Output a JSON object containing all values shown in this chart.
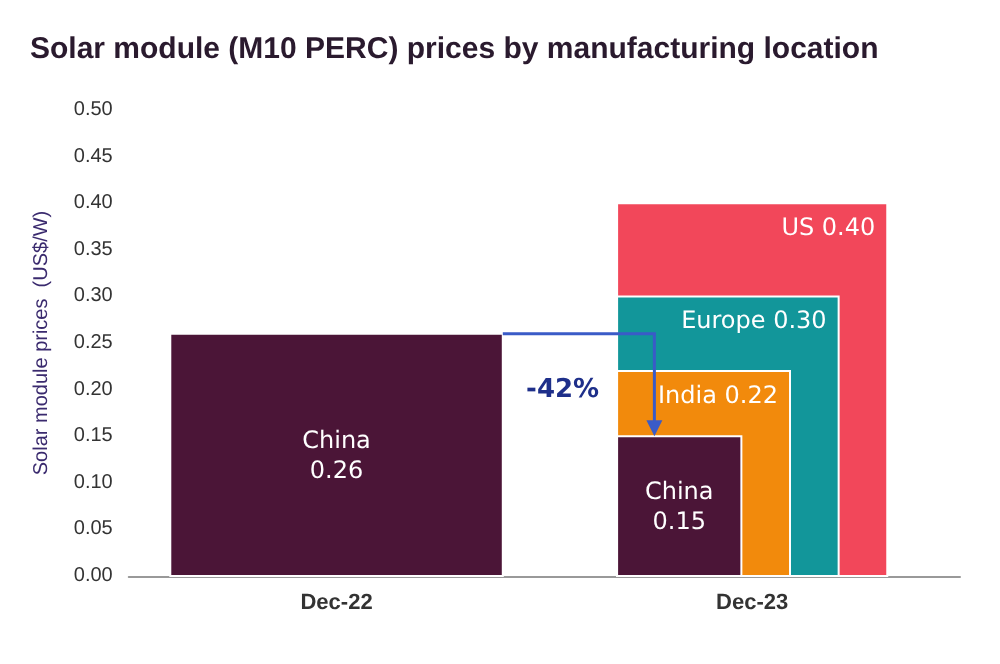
{
  "chart_data": {
    "type": "bar",
    "title": "Solar module (M10 PERC) prices by manufacturing location",
    "ylabel": "Solar module prices  (US$/W)",
    "categories": [
      "Dec-22",
      "Dec-23"
    ],
    "series": [
      {
        "name": "US",
        "color": "#f2475a",
        "values": [
          null,
          0.4
        ],
        "value_labels": [
          null,
          "0.40"
        ]
      },
      {
        "name": "Europe",
        "color": "#12969a",
        "values": [
          null,
          0.3
        ],
        "value_labels": [
          null,
          "0.30"
        ]
      },
      {
        "name": "India",
        "color": "#f28a0c",
        "values": [
          null,
          0.22
        ],
        "value_labels": [
          null,
          "0.22"
        ]
      },
      {
        "name": "China",
        "color": "#4b1537",
        "values": [
          0.26,
          0.15
        ],
        "value_labels": [
          "0.26",
          "0.15"
        ]
      }
    ],
    "ylim": [
      0,
      0.5
    ],
    "yticks": [
      {
        "value": 0,
        "label": "0.00"
      },
      {
        "value": 0.05,
        "label": "0.05"
      },
      {
        "value": 0.1,
        "label": "0.10"
      },
      {
        "value": 0.15,
        "label": "0.15"
      },
      {
        "value": 0.2,
        "label": "0.20"
      },
      {
        "value": 0.25,
        "label": "0.25"
      },
      {
        "value": 0.3,
        "label": "0.30"
      },
      {
        "value": 0.35,
        "label": "0.35"
      },
      {
        "value": 0.4,
        "label": "0.40"
      },
      {
        "value": 0.45,
        "label": "0.45"
      },
      {
        "value": 0.5,
        "label": "0.50"
      }
    ],
    "annotations": [
      "-42%"
    ],
    "grid": false,
    "legend": false
  }
}
